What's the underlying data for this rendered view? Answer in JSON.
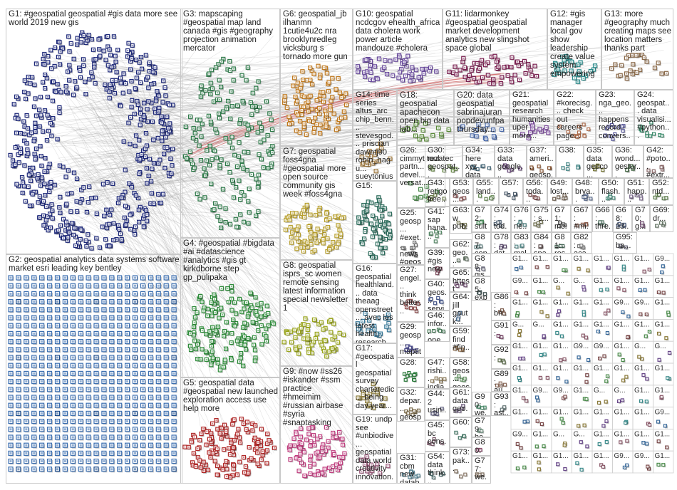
{
  "title": "",
  "groups": [
    {
      "id": "G1",
      "label": "G1: #geospatial geospatial #gis data more see world 2019 new gis",
      "color": "#1f2a7a",
      "layout": "ellipse",
      "count": 520
    },
    {
      "id": "G2",
      "label": "G2: geospatial analytics data systems software market esri leading key bentley",
      "color": "#3c6fb0",
      "layout": "grid",
      "count": 360
    },
    {
      "id": "G3",
      "label": "G3: mapscaping #geospatial map land canada #gis #geography projection animation mercator",
      "color": "#2f7a4a",
      "layout": "ellipse",
      "count": 180
    },
    {
      "id": "G4",
      "label": "G4: #geospatial #bigdata #ai #datascience #analytics #gis gt kirkdborne step gp_pulipaka",
      "color": "#2e8b3a",
      "layout": "ellipse",
      "count": 160
    },
    {
      "id": "G5",
      "label": "G5: geospatial data #geospatial new launched exploration access use help more",
      "color": "#b02a2a",
      "layout": "ellipse",
      "count": 140
    },
    {
      "id": "G6",
      "label": "G6: geospatial_jb ilhanmn 1cutie4u2c nra brooklynredleg vicksburg s tornado more gun",
      "color": "#c07a20",
      "layout": "ellipse",
      "count": 110
    },
    {
      "id": "G7",
      "label": "G7: geospatial foss4gna #geospatial more open source community gis week #foss4gna",
      "color": "#b8a030",
      "layout": "ellipse",
      "count": 90
    },
    {
      "id": "G8",
      "label": "G8: geospatial isprs_sc women remote sensing latest information special newsletter 1",
      "color": "#9aa51e",
      "layout": "ellipse",
      "count": 70
    },
    {
      "id": "G9",
      "label": "G9: #now #ss26 #iskander #ssm practice #hmeimim #russian airbase #syria #snaptasking",
      "color": "#c04080",
      "layout": "ellipse",
      "count": 90
    },
    {
      "id": "G10",
      "label": "G10: geospatial ncdcgov ehealth_africa data cholera work power article mandouze #cholera",
      "color": "#6a4c9c",
      "layout": "ellipse",
      "count": 60
    },
    {
      "id": "G11",
      "label": "G11: lidarmonkey #geospatial geospatial market development analytics new slingshot space global",
      "color": "#7a2050",
      "layout": "ellipse",
      "count": 60
    },
    {
      "id": "G12",
      "label": "G12: #gis manager local gov show leadership create value system empowering",
      "color": "#2a8a8a",
      "layout": "ellipse",
      "count": 30
    },
    {
      "id": "G13",
      "label": "G13: more #geography much creating maps see location matters thanks part",
      "color": "#8a6a4a",
      "layout": "ellipse",
      "count": 25
    },
    {
      "id": "G14",
      "label": "G14: time series altus_arc chip_benn... stevesgod... priscian dawntj90 robin_hagu... sueytonius...",
      "color": "#a07a40",
      "layout": "ellipse",
      "count": 18
    },
    {
      "id": "G15",
      "label": "G15:",
      "color": "#2a6a5a",
      "layout": "ellipse",
      "count": 70
    },
    {
      "id": "G16",
      "label": "G16: geospatial healthland... data theaag openstreet... avec les latest health research",
      "color": "#3a7a9a",
      "layout": "ellipse",
      "count": 22
    },
    {
      "id": "G17",
      "label": "G17: #geospatial geospatial survey charteredic... being day year...",
      "color": "#8a7a3a",
      "layout": "ellipse",
      "count": 20
    },
    {
      "id": "G18",
      "label": "G18: geospatial apachecon open big data lab...",
      "color": "#5a8a3a",
      "layout": "ellipse",
      "count": 16
    },
    {
      "id": "G19",
      "label": "G19: undp see #unbiodive... geospatial data world creativity innovation...",
      "color": "#9a5a7a",
      "layout": "ellipse",
      "count": 16
    },
    {
      "id": "G20",
      "label": "G20: data geospatial sabrinajuran popdevunfpa thursday...",
      "color": "#4a6aaa",
      "layout": "ellipse",
      "count": 14
    },
    {
      "id": "G21",
      "label": "G21: geospatial research humanities uper more...",
      "color": "#7a4a9a",
      "layout": "ellipse",
      "count": 14
    },
    {
      "id": "G22",
      "label": "G22: #korecisg... check out careers page...",
      "color": "#aa6a4a",
      "layout": "ellipse",
      "count": 12
    },
    {
      "id": "G23",
      "label": "G23: nga_geo... happens record convers...",
      "color": "#5a5a9a",
      "layout": "ellipse",
      "count": 12
    },
    {
      "id": "G24",
      "label": "G24: geospat... data visualisi... #python...",
      "color": "#3a8a6a",
      "layout": "ellipse",
      "count": 12
    },
    {
      "id": "G25",
      "label": "G25: geosp... #exet... news #geos... data...",
      "color": "#6a6a6a",
      "layout": "ellipse",
      "count": 10
    },
    {
      "id": "G26",
      "label": "G26: cimmyt tool partn... devel... versat...",
      "color": "#4a8a4a",
      "layout": "ellipse",
      "count": 10
    },
    {
      "id": "G27",
      "label": "G27: engel... think better...",
      "color": "#8a4a4a",
      "layout": "ellipse",
      "count": 9
    },
    {
      "id": "G28",
      "label": "G28:",
      "color": "#2a7a3a",
      "layout": "ellipse",
      "count": 9
    },
    {
      "id": "G29",
      "label": "G29: geosp... maptit... info...",
      "color": "#4a4a8a",
      "layout": "ellipse",
      "count": 8
    },
    {
      "id": "G30",
      "label": "G30: rezatec geospat...",
      "color": "#6a8a4a",
      "layout": "ellipse",
      "count": 8
    },
    {
      "id": "G31",
      "label": "G31: cbm new datab...",
      "color": "#4a7a8a",
      "layout": "ellipse",
      "count": 8
    },
    {
      "id": "G32",
      "label": "G32: depar... geosp... planni...",
      "color": "#7a6a4a",
      "layout": "ellipse",
      "count": 8
    },
    {
      "id": "G33",
      "label": "G33: data google...",
      "color": "#6a4a7a",
      "layout": "ellipse",
      "count": 7
    },
    {
      "id": "G34",
      "label": "G34: here xyz data",
      "color": "#4a6a7a",
      "layout": "ellipse",
      "count": 7
    },
    {
      "id": "G35",
      "label": "G35: data geoco...",
      "color": "#7a7a3a",
      "layout": "ellipse",
      "count": 6
    },
    {
      "id": "G36",
      "label": "G36: wond... gestur...",
      "color": "#5a7a5a",
      "layout": "ellipse",
      "count": 6
    },
    {
      "id": "G37",
      "label": "G37: ameri... geosp...",
      "color": "#8a5a3a",
      "layout": "ellipse",
      "count": 6
    },
    {
      "id": "G38",
      "label": "G38:",
      "color": "#4a8a8a",
      "layout": "ellipse",
      "count": 6
    },
    {
      "id": "G39",
      "label": "G39: #gis new",
      "color": "#7a4a5a",
      "layout": "ellipse",
      "count": 6
    },
    {
      "id": "G40",
      "label": "G40: geos... servi...",
      "color": "#4a5a8a",
      "layout": "ellipse",
      "count": 6
    },
    {
      "id": "G41",
      "label": "G41: sap hana...",
      "color": "#5a8a6a",
      "layout": "ellipse",
      "count": 6
    },
    {
      "id": "G42",
      "label": "G42: #poto... #extr...",
      "color": "#8a6a6a",
      "layout": "ellipse",
      "count": 5
    },
    {
      "id": "G43",
      "label": "G43: retigo free...",
      "color": "#6a7a4a",
      "layout": "ellipse",
      "count": 5
    },
    {
      "id": "G44",
      "label": "G44: 2 usin...",
      "color": "#5a5a7a",
      "layout": "ellipse",
      "count": 5
    },
    {
      "id": "G45",
      "label": "G45: bc cons...",
      "color": "#7a5a6a",
      "layout": "ellipse",
      "count": 5
    },
    {
      "id": "G46",
      "label": "G46: infor... one...",
      "color": "#4a7a5a",
      "layout": "ellipse",
      "count": 5
    },
    {
      "id": "G47",
      "label": "G47: rishi... india...",
      "color": "#8a7a5a",
      "layout": "ellipse",
      "count": 5
    },
    {
      "id": "G48",
      "label": "G48: brya...",
      "color": "#5a6a8a",
      "layout": "ellipse",
      "count": 5
    },
    {
      "id": "G49",
      "label": "G49: lost...",
      "color": "#6a5a4a",
      "layout": "ellipse",
      "count": 5
    },
    {
      "id": "G50",
      "label": "G50: flash...",
      "color": "#4a8a7a",
      "layout": "ellipse",
      "count": 5
    },
    {
      "id": "G51",
      "label": "G51: happ...",
      "color": "#7a6a8a",
      "layout": "ellipse",
      "count": 5
    },
    {
      "id": "G52",
      "label": "G52: ntd...",
      "color": "#5a7a4a",
      "layout": "ellipse",
      "count": 5
    },
    {
      "id": "G53",
      "label": "G53: geos...",
      "color": "#8a5a5a",
      "layout": "ellipse",
      "count": 5
    },
    {
      "id": "G54",
      "label": "G54: data think...",
      "color": "#4a6a6a",
      "layout": "ellipse",
      "count": 5
    },
    {
      "id": "G55",
      "label": "G55: land...",
      "color": "#6a8a5a",
      "layout": "ellipse",
      "count": 5
    },
    {
      "id": "G56",
      "label": "G56: toda...",
      "color": "#7a4a4a",
      "layout": "ellipse",
      "count": 5
    },
    {
      "id": "G57",
      "label": "G57:",
      "color": "#4a5a6a",
      "layout": "ellipse",
      "count": 5
    },
    {
      "id": "G58",
      "label": "G58: geos... geos...",
      "color": "#5a8a5a",
      "layout": "ellipse",
      "count": 5
    },
    {
      "id": "G59",
      "label": "G59: find #fin...",
      "color": "#8a6a4a",
      "layout": "ellipse",
      "count": 5
    },
    {
      "id": "G60",
      "label": "G60:",
      "color": "#4a7a6a",
      "layout": "ellipse",
      "count": 4
    },
    {
      "id": "G61",
      "label": "G61: data geo...",
      "color": "#6a5a7a",
      "layout": "ellipse",
      "count": 4
    },
    {
      "id": "G62",
      "label": "G62: geo... inn...",
      "color": "#5a6a5a",
      "layout": "ellipse",
      "count": 4
    },
    {
      "id": "G63",
      "label": "G63: w pub...",
      "color": "#7a7a5a",
      "layout": "ellipse",
      "count": 4
    },
    {
      "id": "G64",
      "label": "G64: jill goutk... gra...",
      "color": "#4a6a8a",
      "layout": "ellipse",
      "count": 4
    },
    {
      "id": "G65",
      "label": "G65: https t co...",
      "color": "#6a4a6a",
      "layout": "ellipse",
      "count": 4
    },
    {
      "id": "G66",
      "label": "G66: thre...",
      "color": "#5a7a6a",
      "layout": "ellipse",
      "count": 4
    },
    {
      "id": "G67",
      "label": "G67: #mi...",
      "color": "#8a5a4a",
      "layout": "ellipse",
      "count": 4
    },
    {
      "id": "G68",
      "label": "G68: 23...",
      "color": "#4a5a7a",
      "layout": "ellipse",
      "count": 4
    },
    {
      "id": "G69",
      "label": "G69: dr...",
      "color": "#6a7a6a",
      "layout": "ellipse",
      "count": 4
    },
    {
      "id": "G70",
      "label": "G70: g...",
      "color": "#7a5a7a",
      "layout": "ellipse",
      "count": 4
    },
    {
      "id": "G71",
      "label": "G71: mc...",
      "color": "#5a5a5a",
      "layout": "ellipse",
      "count": 4
    },
    {
      "id": "G72",
      "label": "G72: sult...",
      "color": "#4a8a5a",
      "layout": "ellipse",
      "count": 4
    },
    {
      "id": "G73",
      "label": "G73: pak...",
      "color": "#8a7a6a",
      "layout": "ellipse",
      "count": 4
    },
    {
      "id": "G74",
      "label": "G74: tod...",
      "color": "#5a6a7a",
      "layout": "ellipse",
      "count": 4
    },
    {
      "id": "G75",
      "label": "G75: s...",
      "color": "#6a6a4a",
      "layout": "ellipse",
      "count": 4
    },
    {
      "id": "G76",
      "label": "G76: ne...",
      "color": "#4a7a7a",
      "layout": "ellipse",
      "count": 4
    },
    {
      "id": "G77",
      "label": "G77: we...",
      "color": "#7a6a5a",
      "layout": "ellipse",
      "count": 4
    },
    {
      "id": "G78",
      "label": "G78: dat...",
      "color": "#5a4a6a",
      "layout": "ellipse",
      "count": 4
    },
    {
      "id": "G79",
      "label": "G79: he...",
      "color": "#6a8a7a",
      "layout": "ellipse",
      "count": 4
    },
    {
      "id": "G80",
      "label": "G80: su...",
      "color": "#8a4a6a",
      "layout": "ellipse",
      "count": 4
    },
    {
      "id": "G81",
      "label": "G81: res...",
      "color": "#4a6a5a",
      "layout": "ellipse",
      "count": 4
    },
    {
      "id": "G82",
      "label": "G82: aca...",
      "color": "#7a7a7a",
      "layout": "ellipse",
      "count": 4
    },
    {
      "id": "G83",
      "label": "G83: mal...",
      "color": "#5a8a8a",
      "layout": "ellipse",
      "count": 4
    },
    {
      "id": "G84",
      "label": "G84: spa...",
      "color": "#6a5a5a",
      "layout": "ellipse",
      "count": 4
    },
    {
      "id": "G85",
      "label": "G85: exp...",
      "color": "#4a5a5a",
      "layout": "ellipse",
      "count": 4
    },
    {
      "id": "G86",
      "label": "G86: bri...",
      "color": "#7a5a4a",
      "layout": "ellipse",
      "count": 4
    },
    {
      "id": "G87",
      "label": "G87: con...",
      "color": "#5a7a7a",
      "layout": "ellipse",
      "count": 4
    },
    {
      "id": "G88",
      "label": "G88: gis...",
      "color": "#6a6a7a",
      "layout": "ellipse",
      "count": 4
    },
    {
      "id": "G89",
      "label": "G89: au...",
      "color": "#8a6a5a",
      "layout": "ellipse",
      "count": 4
    },
    {
      "id": "G90",
      "label": "G90: we...",
      "color": "#4a8a6a",
      "layout": "ellipse",
      "count": 4
    },
    {
      "id": "G91",
      "label": "G91:",
      "color": "#7a4a6a",
      "layout": "ellipse",
      "count": 3
    },
    {
      "id": "G92",
      "label": "G92:",
      "color": "#5a6a4a",
      "layout": "ellipse",
      "count": 3
    },
    {
      "id": "G93",
      "label": "G93: ast...",
      "color": "#6a7a7a",
      "layout": "ellipse",
      "count": 3
    },
    {
      "id": "G95",
      "label": "G95: ba...",
      "color": "#5a5a6a",
      "layout": "ellipse",
      "count": 3
    }
  ],
  "tiny_groups": [
    "G1... stu...",
    "G1... 1s...",
    "G1... tod...",
    "G1... th...",
    "G1... we...",
    "G1... usf...",
    "G1...",
    "G9... 99...",
    "G9... ma...",
    "G1... ma...",
    "G... gi...",
    "G... sp...",
    "G1... ia...",
    "G1... bl..."
  ]
}
